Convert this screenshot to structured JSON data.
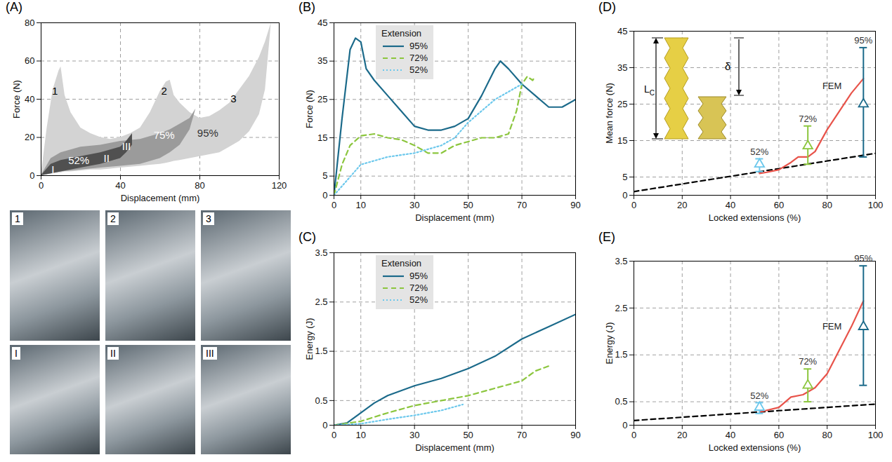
{
  "chart_data": [
    {
      "panel": "(A)",
      "type": "area",
      "x_label": "Displacement (mm)",
      "y_label": "Force (N)",
      "xlim": [
        0,
        120
      ],
      "xticks": [
        0,
        40,
        80,
        120
      ],
      "ylim": [
        0,
        80
      ],
      "yticks": [
        0,
        20,
        40,
        60,
        80
      ],
      "grid": true,
      "series": [
        {
          "name": "95%",
          "color": "#d3d3d3",
          "label_xy": [
            84,
            22
          ],
          "x": [
            0,
            3,
            6,
            9,
            10,
            12,
            15,
            20,
            25,
            30,
            35,
            40,
            45,
            50,
            55,
            60,
            63,
            65,
            67,
            70,
            75,
            80,
            85,
            90,
            95,
            100,
            105,
            110,
            113,
            116
          ],
          "upper": [
            0,
            25,
            45,
            55,
            57,
            42,
            33,
            25,
            22,
            20,
            19,
            20,
            22,
            25,
            33,
            44,
            49,
            50,
            42,
            38,
            33,
            30,
            31,
            34,
            38,
            45,
            52,
            62,
            70,
            80
          ],
          "lower": [
            0,
            0.5,
            1,
            1.5,
            1.5,
            2,
            2,
            2.5,
            3,
            3,
            3.5,
            4,
            4.5,
            5,
            5.5,
            6,
            6.5,
            7,
            7.5,
            8,
            9,
            10,
            11,
            12,
            15,
            18,
            23,
            32,
            45,
            80
          ]
        },
        {
          "name": "75%",
          "color": "#9b9b9b",
          "label_xy": [
            62,
            21
          ],
          "x": [
            0,
            5,
            10,
            20,
            30,
            40,
            50,
            60,
            65,
            70,
            75,
            78
          ],
          "upper": [
            0,
            9,
            12,
            15,
            16,
            18,
            19,
            22,
            24,
            27,
            30,
            35
          ],
          "lower": [
            0,
            1,
            2,
            3,
            4,
            5,
            6,
            9,
            12,
            16,
            24,
            35
          ]
        },
        {
          "name": "52%",
          "color": "#505050",
          "label_xy": [
            19,
            8
          ],
          "x": [
            0,
            5,
            10,
            20,
            30,
            40,
            43,
            46
          ],
          "upper": [
            0,
            6,
            8,
            10,
            12,
            15,
            18,
            22
          ],
          "lower": [
            0,
            1,
            2,
            4,
            6,
            9,
            12,
            16
          ]
        }
      ],
      "annotations": [
        {
          "text": "1",
          "x": 7,
          "y": 44,
          "color": "#000000"
        },
        {
          "text": "2",
          "x": 62,
          "y": 44,
          "color": "#000000"
        },
        {
          "text": "3",
          "x": 97,
          "y": 40,
          "color": "#000000"
        },
        {
          "text": "I",
          "x": 6,
          "y": 3,
          "color": "#ffffff"
        },
        {
          "text": "II",
          "x": 33,
          "y": 9,
          "color": "#ffffff"
        },
        {
          "text": "III",
          "x": 43,
          "y": 15,
          "color": "#ffffff"
        }
      ]
    },
    {
      "panel": "(B)",
      "type": "line",
      "x_label": "Displacement (mm)",
      "y_label": "Force (N)",
      "xlim": [
        0,
        90
      ],
      "xticks": [
        0,
        10,
        30,
        50,
        70,
        90
      ],
      "ylim": [
        0,
        45
      ],
      "yticks": [
        0,
        5,
        15,
        25,
        35,
        45
      ],
      "grid": true,
      "legend": "top-left",
      "legend_title": "Extension",
      "series": [
        {
          "name": "95%",
          "color": "#1b6a8a",
          "line_style": "solid",
          "x": [
            0,
            3,
            6,
            8,
            10,
            12,
            15,
            20,
            25,
            30,
            35,
            40,
            45,
            50,
            55,
            60,
            62,
            65,
            70,
            75,
            80,
            85,
            90
          ],
          "values": [
            0,
            20,
            38,
            41,
            40,
            33,
            30,
            26,
            22,
            18,
            17,
            17,
            18,
            20,
            26,
            33,
            35,
            33,
            29,
            26,
            23,
            23,
            25
          ]
        },
        {
          "name": "72%",
          "color": "#8cc63e",
          "line_style": "dashed",
          "x": [
            0,
            3,
            6,
            10,
            15,
            20,
            25,
            30,
            35,
            40,
            45,
            50,
            55,
            60,
            65,
            68,
            70,
            72,
            74,
            75
          ],
          "values": [
            0,
            8,
            13,
            15.5,
            16,
            15,
            14.5,
            13,
            11,
            11,
            13,
            14,
            15,
            15,
            16,
            22,
            29,
            31,
            30,
            31
          ]
        },
        {
          "name": "52%",
          "color": "#6cc8ec",
          "line_style": "dotted",
          "x": [
            0,
            5,
            10,
            15,
            20,
            25,
            30,
            35,
            40,
            45,
            50,
            55,
            60,
            65,
            70
          ],
          "values": [
            0,
            4,
            8,
            9,
            10,
            10.5,
            11,
            12,
            13,
            15,
            19,
            22,
            25,
            27,
            29
          ]
        }
      ]
    },
    {
      "panel": "(C)",
      "type": "line",
      "x_label": "Displacement (mm)",
      "y_label": "Energy (J)",
      "xlim": [
        0,
        90
      ],
      "xticks": [
        0,
        10,
        30,
        50,
        70,
        90
      ],
      "ylim": [
        0,
        3.5
      ],
      "yticks": [
        0,
        0.5,
        1.5,
        2.5,
        3.5
      ],
      "grid": true,
      "legend": "top-left",
      "legend_title": "Extension",
      "series": [
        {
          "name": "95%",
          "color": "#1b6a8a",
          "line_style": "solid",
          "x": [
            0,
            5,
            10,
            15,
            20,
            30,
            40,
            50,
            60,
            70,
            80,
            90
          ],
          "values": [
            0,
            0.05,
            0.25,
            0.45,
            0.6,
            0.8,
            0.95,
            1.15,
            1.4,
            1.75,
            2.0,
            2.25
          ]
        },
        {
          "name": "72%",
          "color": "#8cc63e",
          "line_style": "dashed",
          "x": [
            0,
            10,
            20,
            30,
            40,
            50,
            60,
            70,
            75,
            80
          ],
          "values": [
            0,
            0.08,
            0.25,
            0.4,
            0.5,
            0.6,
            0.75,
            0.9,
            1.1,
            1.2
          ]
        },
        {
          "name": "52%",
          "color": "#6cc8ec",
          "line_style": "dotted",
          "x": [
            0,
            10,
            20,
            30,
            40,
            48
          ],
          "values": [
            0,
            0.03,
            0.12,
            0.2,
            0.3,
            0.42
          ]
        }
      ]
    },
    {
      "panel": "(D)",
      "type": "errorbar",
      "x_label": "Locked extensions (%)",
      "y_label": "Mean force (N)",
      "xlim": [
        0,
        100
      ],
      "xticks": [
        0,
        20,
        40,
        60,
        80,
        100
      ],
      "ylim": [
        0,
        45
      ],
      "yticks": [
        0,
        5,
        15,
        25,
        35,
        45
      ],
      "grid": true,
      "inset_labels": {
        "length": "L",
        "length_subscript": "C",
        "displacement": "δ"
      },
      "series": [
        {
          "type": "line",
          "line_style": "dashed",
          "color": "#000000",
          "x": [
            0,
            100
          ],
          "values": [
            1,
            11.5
          ]
        },
        {
          "name": "FEM",
          "type": "line",
          "line_style": "solid",
          "color": "#e8534a",
          "label_xy": [
            86,
            30
          ],
          "x": [
            52,
            55,
            60,
            65,
            68,
            72,
            75,
            80,
            85,
            90,
            95
          ],
          "values": [
            6,
            6.3,
            7,
            9,
            10.5,
            10.5,
            12,
            18,
            23,
            28,
            32
          ]
        },
        {
          "name": "52%",
          "type": "errorbar",
          "marker": "triangle",
          "color": "#6cc8ec",
          "x": [
            52
          ],
          "values": [
            8.5
          ],
          "error_low": [
            6.5
          ],
          "error_high": [
            10
          ]
        },
        {
          "name": "72%",
          "type": "errorbar",
          "marker": "triangle",
          "color": "#8cc63e",
          "x": [
            72
          ],
          "values": [
            13.5
          ],
          "error_low": [
            8.5
          ],
          "error_high": [
            19
          ]
        },
        {
          "name": "95%",
          "type": "errorbar",
          "marker": "triangle",
          "color": "#1b6a8a",
          "x": [
            95
          ],
          "values": [
            25
          ],
          "error_low": [
            10.5
          ],
          "error_high": [
            40.5
          ]
        }
      ]
    },
    {
      "panel": "(E)",
      "type": "errorbar",
      "x_label": "Locked extensions (%)",
      "y_label": "Energy (J)",
      "xlim": [
        0,
        100
      ],
      "xticks": [
        0,
        20,
        40,
        60,
        80,
        100
      ],
      "ylim": [
        0,
        3.5
      ],
      "yticks": [
        0,
        0.5,
        1.5,
        2.5,
        3.5
      ],
      "grid": true,
      "series": [
        {
          "type": "line",
          "line_style": "dashed",
          "color": "#000000",
          "x": [
            0,
            100
          ],
          "values": [
            0.1,
            0.45
          ]
        },
        {
          "name": "FEM",
          "type": "line",
          "line_style": "solid",
          "color": "#e8534a",
          "label_xy": [
            86,
            2.1
          ],
          "x": [
            52,
            60,
            65,
            70,
            75,
            80,
            85,
            90,
            95
          ],
          "values": [
            0.28,
            0.38,
            0.6,
            0.65,
            0.8,
            1.1,
            1.6,
            2.1,
            2.65
          ]
        },
        {
          "name": "52%",
          "type": "errorbar",
          "marker": "triangle",
          "color": "#6cc8ec",
          "x": [
            52
          ],
          "values": [
            0.38
          ],
          "error_low": [
            0.25
          ],
          "error_high": [
            0.48
          ]
        },
        {
          "name": "72%",
          "type": "errorbar",
          "marker": "triangle",
          "color": "#8cc63e",
          "x": [
            72
          ],
          "values": [
            0.85
          ],
          "error_low": [
            0.5
          ],
          "error_high": [
            1.2
          ]
        },
        {
          "name": "95%",
          "type": "errorbar",
          "marker": "triangle",
          "color": "#1b6a8a",
          "x": [
            95
          ],
          "values": [
            2.1
          ],
          "error_low": [
            0.85
          ],
          "error_high": [
            3.4
          ]
        }
      ]
    }
  ],
  "photos": {
    "rows": [
      [
        "1",
        "2",
        "3"
      ],
      [
        "I",
        "II",
        "III"
      ]
    ]
  }
}
